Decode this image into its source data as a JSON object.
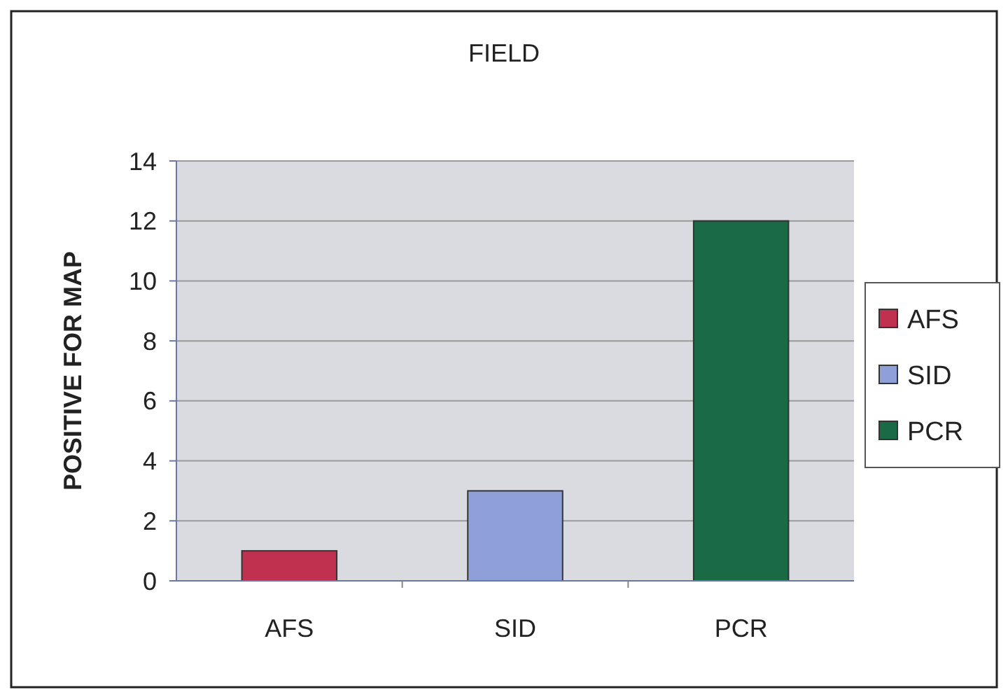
{
  "chart_data": {
    "type": "bar",
    "title": "FIELD",
    "ylabel": "POSITIVE FOR MAP",
    "categories": [
      "AFS",
      "SID",
      "PCR"
    ],
    "stacked": true,
    "series": [
      {
        "name": "AFS",
        "color": "#c0304f",
        "values": [
          1,
          null,
          null
        ]
      },
      {
        "name": "SID",
        "color": "#8fa0d8",
        "values": [
          null,
          3,
          null
        ]
      },
      {
        "name": "PCR",
        "color": "#1a6a46",
        "values": [
          null,
          null,
          12
        ]
      }
    ],
    "ylim": [
      0,
      14
    ],
    "yticks": [
      0,
      2,
      4,
      6,
      8,
      10,
      12,
      14
    ],
    "grid": "y",
    "legend": "right"
  }
}
